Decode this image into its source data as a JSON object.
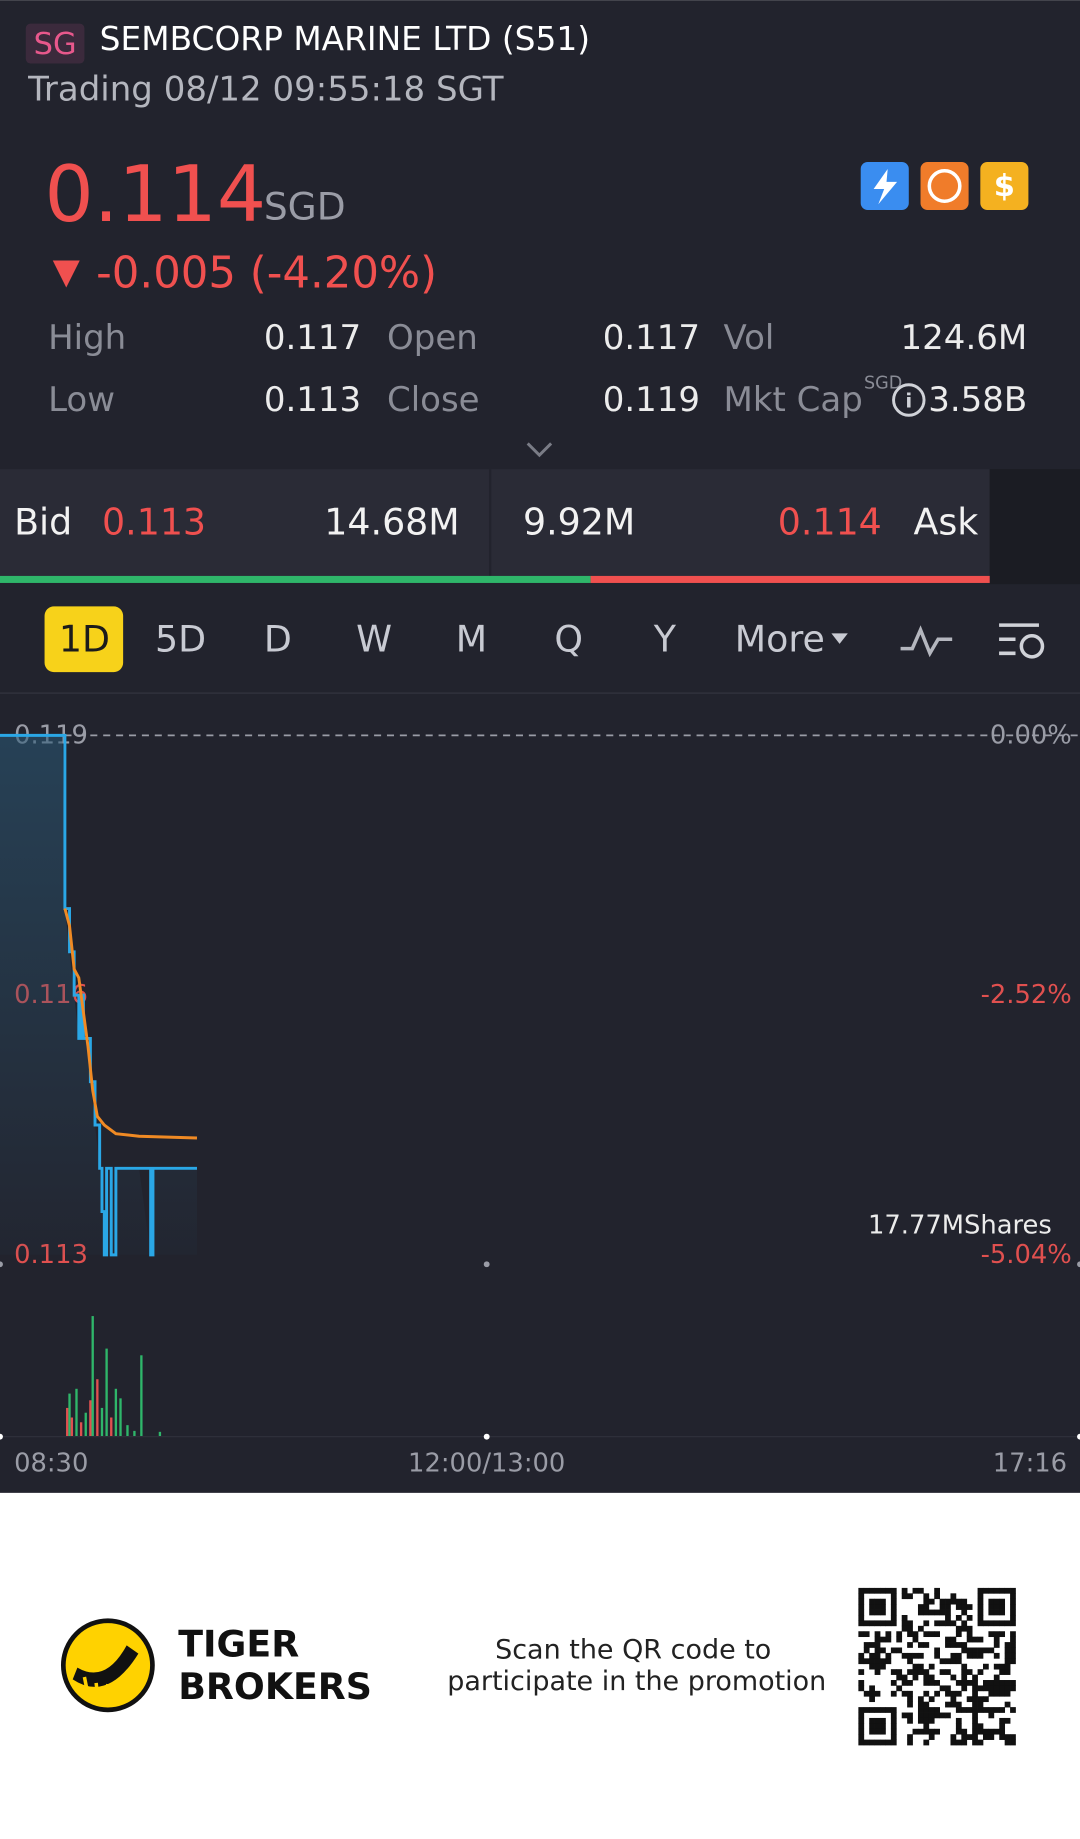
{
  "header": {
    "badge": "SG",
    "name": "SEMBCORP MARINE LTD (S51)",
    "status": "Trading 08/12 09:55:18 SGT"
  },
  "quote": {
    "price": "0.114",
    "currency": "SGD",
    "change": "-0.005 (-4.20%)",
    "stats": [
      [
        {
          "label": "High",
          "value": "0.117"
        },
        {
          "label": "Open",
          "value": "0.117"
        },
        {
          "label": "Vol",
          "value": "124.6M"
        }
      ],
      [
        {
          "label": "Low",
          "value": "0.113"
        },
        {
          "label": "Close",
          "value": "0.119"
        },
        {
          "label": "Mkt Cap",
          "unit": "SGD",
          "value": "3.58B"
        }
      ]
    ]
  },
  "bid_ask": {
    "bid_label": "Bid",
    "bid_price": "0.113",
    "bid_size": "14.68M",
    "ask_size": "9.92M",
    "ask_price": "0.114",
    "ask_label": "Ask"
  },
  "tabs": {
    "items": [
      "1D",
      "5D",
      "D",
      "W",
      "M",
      "Q",
      "Y",
      "More"
    ],
    "active": 0
  },
  "chart_data": {
    "type": "line",
    "series": [
      {
        "color": "#2aa7e6",
        "x": [
          "08:30",
          "08:57",
          "08:58",
          "09:00",
          "09:02",
          "09:04",
          "09:05",
          "09:06",
          "09:08",
          "09:09",
          "09:11",
          "09:13",
          "09:14",
          "09:15",
          "09:16",
          "09:18",
          "09:20",
          "09:30",
          "09:35",
          "09:36",
          "09:55"
        ],
        "values": [
          0.119,
          0.119,
          0.117,
          0.1165,
          0.116,
          0.1155,
          0.116,
          0.1155,
          0.1155,
          0.115,
          0.1145,
          0.114,
          0.1135,
          0.113,
          0.114,
          0.113,
          0.114,
          0.114,
          0.113,
          0.114,
          0.114
        ]
      },
      {
        "color": "#f08a24",
        "x": [
          "08:58",
          "09:00",
          "09:02",
          "09:04",
          "09:06",
          "09:08",
          "09:10",
          "09:12",
          "09:15",
          "09:20",
          "09:30",
          "09:55"
        ],
        "values": [
          0.117,
          0.1168,
          0.1163,
          0.1162,
          0.1158,
          0.1154,
          0.1149,
          0.1146,
          0.1145,
          0.1144,
          0.11437,
          0.11435
        ]
      }
    ],
    "ylim": [
      0.113,
      0.119
    ],
    "yticks": [
      0.119,
      0.116,
      0.113
    ],
    "y2lim": [
      -5.04,
      0
    ],
    "y2ticks": [
      {
        "value": 0,
        "label": "0.00%"
      },
      {
        "value": -2.52,
        "label": "-2.52%"
      },
      {
        "value": -5.04,
        "label": "-5.04%"
      }
    ],
    "xticks": [
      "08:30",
      "12:00/13:00",
      "17:16"
    ],
    "volume": {
      "ylim": [
        0,
        17.77
      ],
      "yticks": [
        {
          "value": 17.77,
          "label": "17.77MShares"
        }
      ],
      "x": [
        "08:59",
        "09:00",
        "09:01",
        "09:03",
        "09:05",
        "09:07",
        "09:09",
        "09:10",
        "09:12",
        "09:14",
        "09:16",
        "09:18",
        "09:20",
        "09:22",
        "09:25",
        "09:28",
        "09:31",
        "09:39"
      ],
      "values": [
        3.0,
        4.5,
        2.0,
        5.0,
        1.5,
        2.5,
        3.8,
        12.6,
        6.0,
        3.0,
        9.2,
        2.0,
        5.0,
        4.0,
        1.2,
        0.6,
        8.5,
        0.5
      ],
      "colors": [
        "#e0504f",
        "#2fb66a",
        "#e0504f",
        "#2fb66a",
        "#e0504f",
        "#2fb66a",
        "#e0504f",
        "#2fb66a",
        "#e0504f",
        "#2fb66a",
        "#2fb66a",
        "#e0504f",
        "#2fb66a",
        "#2fb66a",
        "#2fb66a",
        "#2fb66a",
        "#2fb66a",
        "#2fb66a"
      ]
    }
  },
  "footer": {
    "brand": [
      "TIGER",
      "BROKERS"
    ],
    "promo": [
      "Scan the QR code to",
      "participate in the promotion"
    ]
  }
}
